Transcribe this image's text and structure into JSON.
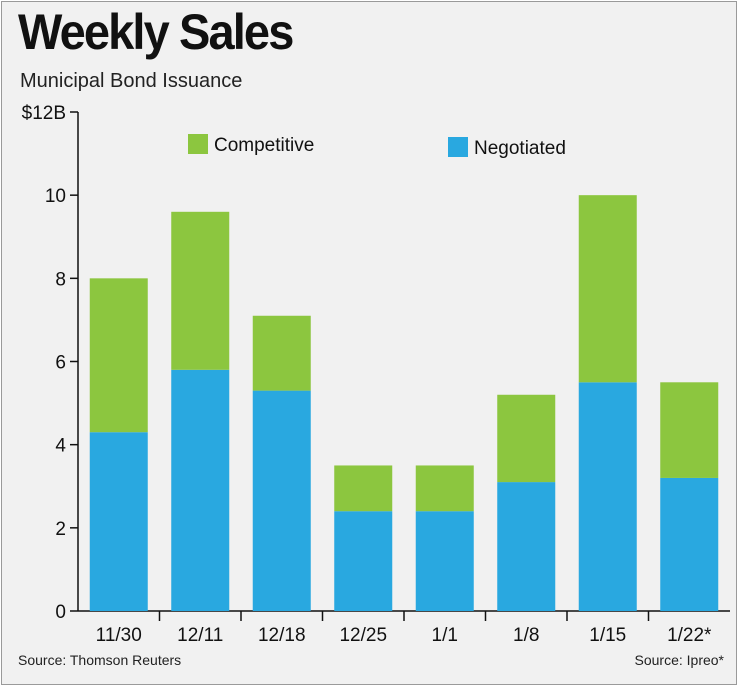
{
  "title": "Weekly Sales",
  "subtitle": "Municipal Bond Issuance",
  "source_left": "Source: Thomson Reuters",
  "source_right": "Source: Ipreo*",
  "colors": {
    "competitive": "#8cc63f",
    "negotiated": "#29a8e0",
    "background": "#f1f1f1",
    "frame": "#9a9a9a"
  },
  "chart_data": {
    "type": "bar",
    "stacked": true,
    "categories": [
      "11/30",
      "12/11",
      "12/18",
      "12/25",
      "1/1",
      "1/8",
      "1/15",
      "1/22*"
    ],
    "series": [
      {
        "name": "Negotiated",
        "values": [
          4.3,
          5.8,
          5.3,
          2.4,
          2.4,
          3.1,
          5.5,
          3.2
        ]
      },
      {
        "name": "Competitive",
        "values": [
          3.7,
          3.8,
          1.8,
          1.1,
          1.1,
          2.1,
          4.5,
          2.3
        ]
      }
    ],
    "totals": [
      8.0,
      9.6,
      7.1,
      3.5,
      3.5,
      5.2,
      10.0,
      5.5
    ],
    "ylim": [
      0,
      12
    ],
    "yticks": [
      "0",
      "2",
      "4",
      "6",
      "8",
      "10",
      "$12B"
    ],
    "grid": false,
    "legend": "top"
  }
}
